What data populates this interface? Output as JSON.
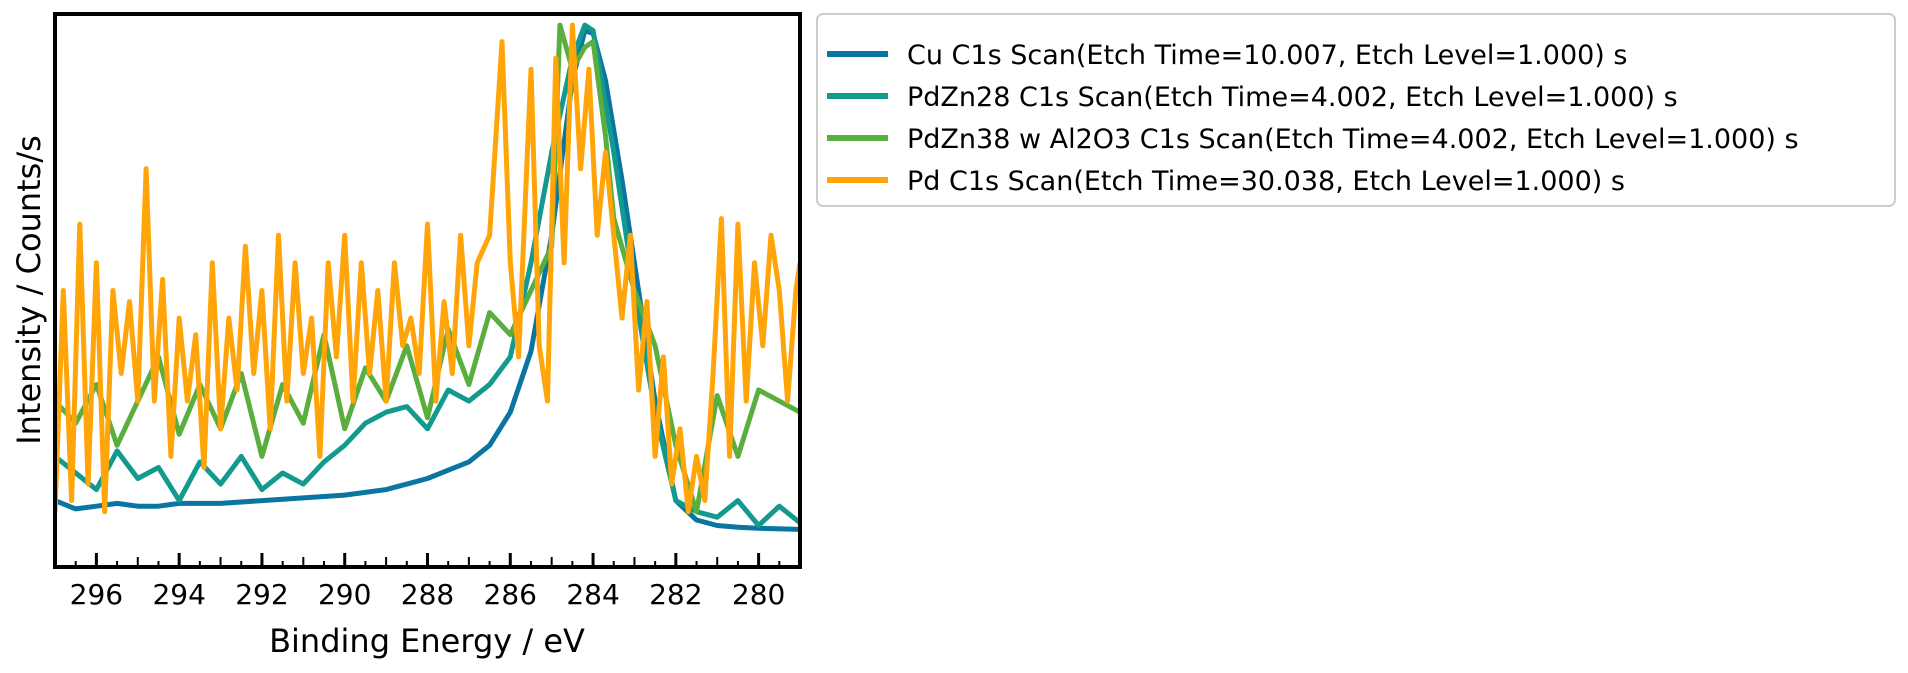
{
  "chart_data": {
    "type": "line",
    "title": "",
    "xlabel": "Binding Energy / eV",
    "ylabel": "Intensity / Counts/s",
    "xlim": [
      297.0,
      279.0
    ],
    "x_reversed": true,
    "ylim": [
      0.0,
      1.0
    ],
    "y_ticks_shown": false,
    "grid": false,
    "legend_placement": "outside-top-right",
    "xticks": [
      296,
      294,
      292,
      290,
      288,
      286,
      284,
      282,
      280
    ],
    "xtick_labels": [
      "296",
      "294",
      "292",
      "290",
      "288",
      "286",
      "284",
      "282",
      "280"
    ],
    "series": [
      {
        "name": "Cu C1s Scan(Etch Time=10.007, Etch Level=1.000) s",
        "color": "#0a75a0",
        "points": [
          [
            297,
            0.12
          ],
          [
            296.5,
            0.105
          ],
          [
            296,
            0.11
          ],
          [
            295.5,
            0.115
          ],
          [
            295,
            0.11
          ],
          [
            294.5,
            0.11
          ],
          [
            294,
            0.115
          ],
          [
            293,
            0.115
          ],
          [
            292,
            0.12
          ],
          [
            291,
            0.125
          ],
          [
            290,
            0.13
          ],
          [
            289,
            0.14
          ],
          [
            288.5,
            0.15
          ],
          [
            288,
            0.16
          ],
          [
            287.5,
            0.175
          ],
          [
            287,
            0.19
          ],
          [
            286.5,
            0.22
          ],
          [
            286,
            0.28
          ],
          [
            285.5,
            0.39
          ],
          [
            285,
            0.6
          ],
          [
            284.5,
            0.88
          ],
          [
            284.2,
            0.97
          ],
          [
            284,
            0.965
          ],
          [
            283.7,
            0.88
          ],
          [
            283.3,
            0.7
          ],
          [
            283,
            0.55
          ],
          [
            282.5,
            0.3
          ],
          [
            282,
            0.12
          ],
          [
            281.5,
            0.085
          ],
          [
            281,
            0.075
          ],
          [
            280.5,
            0.072
          ],
          [
            280,
            0.07
          ],
          [
            279,
            0.068
          ]
        ]
      },
      {
        "name": "PdZn28 C1s Scan(Etch Time=4.002, Etch Level=1.000) s",
        "color": "#139a8f",
        "points": [
          [
            297,
            0.2
          ],
          [
            296.5,
            0.17
          ],
          [
            296,
            0.14
          ],
          [
            295.5,
            0.21
          ],
          [
            295,
            0.16
          ],
          [
            294.5,
            0.18
          ],
          [
            294,
            0.12
          ],
          [
            293.5,
            0.19
          ],
          [
            293,
            0.15
          ],
          [
            292.5,
            0.2
          ],
          [
            292,
            0.14
          ],
          [
            291.5,
            0.17
          ],
          [
            291,
            0.15
          ],
          [
            290.5,
            0.19
          ],
          [
            290,
            0.22
          ],
          [
            289.5,
            0.26
          ],
          [
            289,
            0.28
          ],
          [
            288.5,
            0.29
          ],
          [
            288,
            0.25
          ],
          [
            287.5,
            0.32
          ],
          [
            287,
            0.3
          ],
          [
            286.5,
            0.33
          ],
          [
            286,
            0.38
          ],
          [
            285.5,
            0.55
          ],
          [
            285,
            0.75
          ],
          [
            284.5,
            0.92
          ],
          [
            284.2,
            0.98
          ],
          [
            284,
            0.97
          ],
          [
            283.5,
            0.75
          ],
          [
            283,
            0.5
          ],
          [
            282.5,
            0.28
          ],
          [
            282,
            0.12
          ],
          [
            281.5,
            0.1
          ],
          [
            281,
            0.09
          ],
          [
            280.5,
            0.12
          ],
          [
            280,
            0.075
          ],
          [
            279.5,
            0.11
          ],
          [
            279,
            0.08
          ]
        ]
      },
      {
        "name": "PdZn38 w  Al2O3 C1s Scan(Etch Time=4.002, Etch Level=1.000) s",
        "color": "#5aae3e",
        "points": [
          [
            297,
            0.3
          ],
          [
            296.5,
            0.26
          ],
          [
            296,
            0.33
          ],
          [
            295.5,
            0.22
          ],
          [
            295,
            0.3
          ],
          [
            294.5,
            0.38
          ],
          [
            294,
            0.24
          ],
          [
            293.5,
            0.33
          ],
          [
            293,
            0.25
          ],
          [
            292.5,
            0.35
          ],
          [
            292,
            0.2
          ],
          [
            291.5,
            0.33
          ],
          [
            291,
            0.26
          ],
          [
            290.5,
            0.42
          ],
          [
            290,
            0.25
          ],
          [
            289.5,
            0.36
          ],
          [
            289,
            0.3
          ],
          [
            288.5,
            0.4
          ],
          [
            288,
            0.27
          ],
          [
            287.5,
            0.43
          ],
          [
            287,
            0.33
          ],
          [
            286.5,
            0.46
          ],
          [
            286,
            0.42
          ],
          [
            285.5,
            0.5
          ],
          [
            285,
            0.58
          ],
          [
            284.8,
            0.98
          ],
          [
            284.5,
            0.9
          ],
          [
            284.2,
            0.94
          ],
          [
            284,
            0.95
          ],
          [
            283.7,
            0.78
          ],
          [
            283.5,
            0.63
          ],
          [
            283,
            0.5
          ],
          [
            282.5,
            0.4
          ],
          [
            282,
            0.22
          ],
          [
            281.5,
            0.1
          ],
          [
            281,
            0.31
          ],
          [
            280.5,
            0.2
          ],
          [
            280,
            0.32
          ],
          [
            279.5,
            0.3
          ],
          [
            279,
            0.28
          ]
        ]
      },
      {
        "name": "Pd C1s Scan(Etch Time=30.038, Etch Level=1.000) s",
        "color": "#ffa50a",
        "points": [
          [
            297,
            0.1
          ],
          [
            296.8,
            0.5
          ],
          [
            296.6,
            0.12
          ],
          [
            296.4,
            0.62
          ],
          [
            296.2,
            0.15
          ],
          [
            296,
            0.55
          ],
          [
            295.8,
            0.1
          ],
          [
            295.6,
            0.5
          ],
          [
            295.4,
            0.35
          ],
          [
            295.2,
            0.48
          ],
          [
            295,
            0.3
          ],
          [
            294.8,
            0.72
          ],
          [
            294.6,
            0.3
          ],
          [
            294.4,
            0.52
          ],
          [
            294.2,
            0.2
          ],
          [
            294,
            0.45
          ],
          [
            293.8,
            0.3
          ],
          [
            293.6,
            0.42
          ],
          [
            293.4,
            0.18
          ],
          [
            293.2,
            0.55
          ],
          [
            293,
            0.25
          ],
          [
            292.8,
            0.45
          ],
          [
            292.6,
            0.32
          ],
          [
            292.4,
            0.58
          ],
          [
            292.2,
            0.35
          ],
          [
            292,
            0.5
          ],
          [
            291.8,
            0.25
          ],
          [
            291.6,
            0.6
          ],
          [
            291.4,
            0.3
          ],
          [
            291.2,
            0.55
          ],
          [
            291,
            0.35
          ],
          [
            290.8,
            0.45
          ],
          [
            290.6,
            0.2
          ],
          [
            290.4,
            0.55
          ],
          [
            290.2,
            0.38
          ],
          [
            290,
            0.6
          ],
          [
            289.8,
            0.3
          ],
          [
            289.6,
            0.55
          ],
          [
            289.4,
            0.35
          ],
          [
            289.2,
            0.5
          ],
          [
            289,
            0.3
          ],
          [
            288.8,
            0.55
          ],
          [
            288.6,
            0.4
          ],
          [
            288.4,
            0.45
          ],
          [
            288.2,
            0.35
          ],
          [
            288,
            0.62
          ],
          [
            287.8,
            0.3
          ],
          [
            287.6,
            0.48
          ],
          [
            287.4,
            0.35
          ],
          [
            287.2,
            0.6
          ],
          [
            287,
            0.4
          ],
          [
            286.8,
            0.55
          ],
          [
            286.5,
            0.6
          ],
          [
            286.2,
            0.95
          ],
          [
            286,
            0.55
          ],
          [
            285.8,
            0.38
          ],
          [
            285.5,
            0.9
          ],
          [
            285.3,
            0.4
          ],
          [
            285.1,
            0.3
          ],
          [
            284.9,
            0.92
          ],
          [
            284.7,
            0.55
          ],
          [
            284.5,
            0.98
          ],
          [
            284.3,
            0.72
          ],
          [
            284.1,
            0.9
          ],
          [
            283.9,
            0.6
          ],
          [
            283.7,
            0.75
          ],
          [
            283.5,
            0.6
          ],
          [
            283.3,
            0.45
          ],
          [
            283.1,
            0.6
          ],
          [
            282.9,
            0.32
          ],
          [
            282.7,
            0.48
          ],
          [
            282.5,
            0.2
          ],
          [
            282.3,
            0.38
          ],
          [
            282.1,
            0.15
          ],
          [
            281.9,
            0.25
          ],
          [
            281.7,
            0.1
          ],
          [
            281.5,
            0.2
          ],
          [
            281.3,
            0.12
          ],
          [
            281.1,
            0.35
          ],
          [
            280.9,
            0.63
          ],
          [
            280.7,
            0.2
          ],
          [
            280.5,
            0.62
          ],
          [
            280.3,
            0.3
          ],
          [
            280.1,
            0.55
          ],
          [
            279.9,
            0.4
          ],
          [
            279.7,
            0.6
          ],
          [
            279.5,
            0.5
          ],
          [
            279.3,
            0.3
          ],
          [
            279.1,
            0.5
          ],
          [
            279,
            0.55
          ]
        ]
      }
    ]
  }
}
